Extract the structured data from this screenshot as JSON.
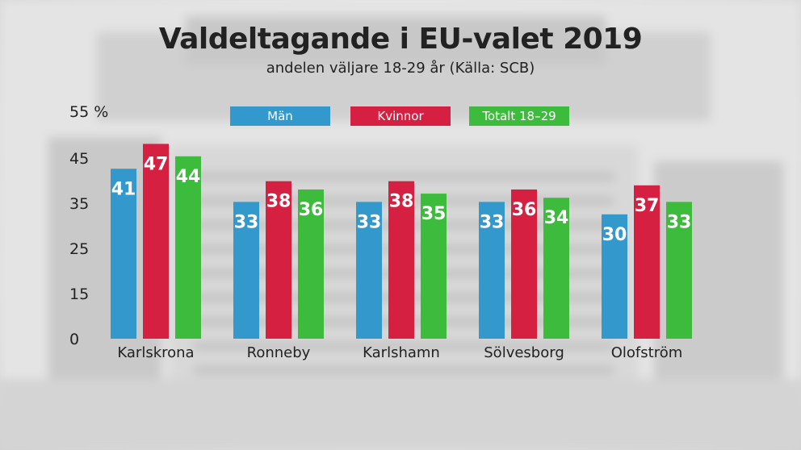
{
  "title": "Valdeltagande i EU-valet 2019",
  "subtitle": "andelen väljare 18-29 år (Källa: SCB)",
  "chart_data": {
    "type": "bar",
    "title": "Valdeltagande i EU-valet 2019",
    "subtitle": "andelen väljare 18-29 år (Källa: SCB)",
    "categories": [
      "Karlskrona",
      "Ronneby",
      "Karlshamn",
      "Sölvesborg",
      "Olofström"
    ],
    "series": [
      {
        "name": "Män",
        "color": "#3399cc",
        "values": [
          41,
          33,
          33,
          33,
          30
        ]
      },
      {
        "name": "Kvinnor",
        "color": "#d62042",
        "values": [
          47,
          38,
          38,
          36,
          37
        ]
      },
      {
        "name": "Totalt 18–29",
        "color": "#3dbb3d",
        "values": [
          44,
          36,
          35,
          34,
          33
        ]
      }
    ],
    "yticks": [
      "0",
      "15",
      "25",
      "35",
      "45",
      "55 %"
    ],
    "ylim": [
      0,
      55
    ],
    "grid": false,
    "legend_position": "top"
  }
}
